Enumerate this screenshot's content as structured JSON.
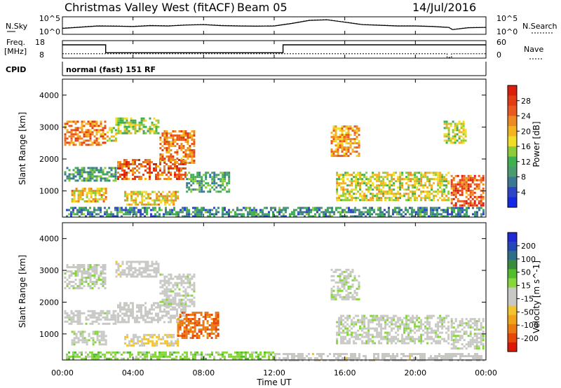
{
  "header": {
    "station": "Christmas Valley West (fitACF)",
    "beam": "Beam 05",
    "date": "14/Jul/2016"
  },
  "panels": {
    "nsky": {
      "left_label": "N.Sky",
      "right_label": "N.Search",
      "left_ticks": [
        "10^5",
        "10^0"
      ],
      "right_ticks": [
        "10^5",
        "10^0"
      ]
    },
    "freq": {
      "left_label_1": "Freq.",
      "left_label_2": "[MHz]",
      "right_label": "Nave",
      "left_ticks": [
        "18",
        "8"
      ],
      "right_ticks": [
        "60",
        "0"
      ]
    },
    "cpid": {
      "left_label": "CPID",
      "mode": "normal (fast)  151 RF"
    }
  },
  "colors": {
    "power_scale": [
      "#1428e6",
      "#2d46c8",
      "#3c7896",
      "#4a9b6e",
      "#3fb04f",
      "#8ccc3a",
      "#f0dd26",
      "#f5b31f",
      "#ee8a24",
      "#e85a1e",
      "#e33d14",
      "#dc1e0c"
    ],
    "velocity_scale": [
      "#1f2ad6",
      "#2448b8",
      "#2d6f86",
      "#3b8b3c",
      "#4fbd2e",
      "#86d63c",
      "#c8c8c4",
      "#c8c8c4",
      "#f2c530",
      "#f0a41a",
      "#ec7a12",
      "#e6480a",
      "#dc1a06"
    ]
  },
  "chart_data": [
    {
      "type": "line",
      "name": "N.Sky / N.Search",
      "x_range_hours": [
        0,
        24
      ],
      "y_scale": "log",
      "series": [
        {
          "x": [
            0,
            1,
            2,
            3,
            4,
            5,
            6,
            7,
            8,
            9,
            10,
            11,
            12,
            13,
            14,
            15,
            16,
            17,
            18,
            19,
            20,
            21,
            21.9,
            22.1,
            23,
            24
          ],
          "values": [
            50,
            120,
            300,
            250,
            200,
            400,
            300,
            600,
            800,
            400,
            300,
            250,
            300,
            2000,
            20000,
            30000,
            5000,
            800,
            500,
            300,
            300,
            200,
            100,
            20,
            80,
            100
          ]
        }
      ]
    },
    {
      "type": "line",
      "name": "Frequency / Nave",
      "x_range_hours": [
        0,
        24
      ],
      "ylim_left": [
        8,
        18
      ],
      "ylim_right": [
        0,
        60
      ],
      "series": [
        {
          "x": [
            0,
            2.45,
            2.45,
            12.5,
            12.5,
            21.95,
            21.95,
            24
          ],
          "values": [
            15.5,
            15.5,
            10.8,
            10.8,
            15.5,
            15.5,
            15.5,
            15.5
          ]
        },
        {
          "x": [
            0,
            21.8,
            21.8,
            22.05,
            22.05,
            24
          ],
          "values": [
            13,
            13,
            0,
            0,
            13,
            13
          ]
        }
      ]
    },
    {
      "type": "heatmap",
      "title": "",
      "xlabel": "",
      "ylabel": "Slant Range [km]",
      "xlim_hours": [
        0,
        24
      ],
      "ylim_km": [
        180,
        4500
      ],
      "x_ticks": [
        "00:00",
        "04:00",
        "08:00",
        "12:00",
        "16:00",
        "20:00",
        "00:00"
      ],
      "y_ticks": [
        "1000",
        "2000",
        "3000",
        "4000"
      ],
      "colorbar_label": "Power [dB]",
      "colorbar_ticks": [
        "4",
        "8",
        "12",
        "16",
        "20",
        "24",
        "28"
      ],
      "clim": [
        0,
        30
      ],
      "regions": [
        {
          "x": [
            0.1,
            2.4
          ],
          "y": [
            2450,
            3200
          ],
          "value": 22
        },
        {
          "x": [
            2.5,
            3.0
          ],
          "y": [
            2500,
            3000
          ],
          "value": 16
        },
        {
          "x": [
            3.0,
            5.5
          ],
          "y": [
            2800,
            3300
          ],
          "value": 14
        },
        {
          "x": [
            3.1,
            7.0
          ],
          "y": [
            1350,
            2000
          ],
          "value": 24
        },
        {
          "x": [
            5.5,
            7.5
          ],
          "y": [
            1850,
            2900
          ],
          "value": 22
        },
        {
          "x": [
            0.1,
            3.0
          ],
          "y": [
            1300,
            1750
          ],
          "value": 10
        },
        {
          "x": [
            0.5,
            2.5
          ],
          "y": [
            650,
            1100
          ],
          "value": 18
        },
        {
          "x": [
            3.5,
            6.5
          ],
          "y": [
            600,
            1000
          ],
          "value": 18
        },
        {
          "x": [
            7.0,
            9.5
          ],
          "y": [
            1000,
            1600
          ],
          "value": 10
        },
        {
          "x": [
            15.2,
            16.8
          ],
          "y": [
            2100,
            3050
          ],
          "value": 20
        },
        {
          "x": [
            15.5,
            21.9
          ],
          "y": [
            700,
            1600
          ],
          "value": 16
        },
        {
          "x": [
            22.0,
            23.9
          ],
          "y": [
            550,
            1500
          ],
          "value": 24
        },
        {
          "x": [
            21.6,
            22.9
          ],
          "y": [
            2500,
            3200
          ],
          "value": 14
        },
        {
          "x": [
            0.2,
            23.9
          ],
          "y": [
            200,
            500
          ],
          "value": 8
        }
      ]
    },
    {
      "type": "heatmap",
      "title": "",
      "xlabel": "Time UT",
      "ylabel": "Slant Range [km]",
      "xlim_hours": [
        0,
        24
      ],
      "ylim_km": [
        180,
        4500
      ],
      "x_ticks": [
        "00:00",
        "04:00",
        "08:00",
        "12:00",
        "16:00",
        "20:00",
        "00:00"
      ],
      "y_ticks": [
        "1000",
        "2000",
        "3000",
        "4000"
      ],
      "colorbar_label": "Velocity [m s^-1]",
      "colorbar_ticks": [
        "200",
        "100",
        "50",
        "15",
        "-15",
        "-50",
        "-100",
        "-200"
      ],
      "clim": [
        -250,
        250
      ],
      "regions": [
        {
          "x": [
            0.1,
            2.4
          ],
          "y": [
            2450,
            3200
          ],
          "value": 0
        },
        {
          "x": [
            3.0,
            5.5
          ],
          "y": [
            2800,
            3300
          ],
          "value": -30
        },
        {
          "x": [
            3.1,
            7.0
          ],
          "y": [
            1350,
            2000
          ],
          "value": -20
        },
        {
          "x": [
            5.5,
            7.5
          ],
          "y": [
            1850,
            2900
          ],
          "value": -5
        },
        {
          "x": [
            0.1,
            3.0
          ],
          "y": [
            1300,
            1750
          ],
          "value": -10
        },
        {
          "x": [
            0.5,
            2.5
          ],
          "y": [
            650,
            1100
          ],
          "value": 0
        },
        {
          "x": [
            3.5,
            6.5
          ],
          "y": [
            650,
            1000
          ],
          "value": -60
        },
        {
          "x": [
            6.5,
            8.8
          ],
          "y": [
            850,
            1700
          ],
          "value": -160
        },
        {
          "x": [
            15.2,
            16.8
          ],
          "y": [
            2100,
            3050
          ],
          "value": 0
        },
        {
          "x": [
            15.5,
            21.9
          ],
          "y": [
            700,
            1600
          ],
          "value": 0
        },
        {
          "x": [
            22.0,
            23.9
          ],
          "y": [
            550,
            1500
          ],
          "value": 0
        },
        {
          "x": [
            0.2,
            12.0
          ],
          "y": [
            200,
            450
          ],
          "value": 40
        },
        {
          "x": [
            12.0,
            23.9
          ],
          "y": [
            200,
            400
          ],
          "value": -30
        }
      ]
    }
  ]
}
